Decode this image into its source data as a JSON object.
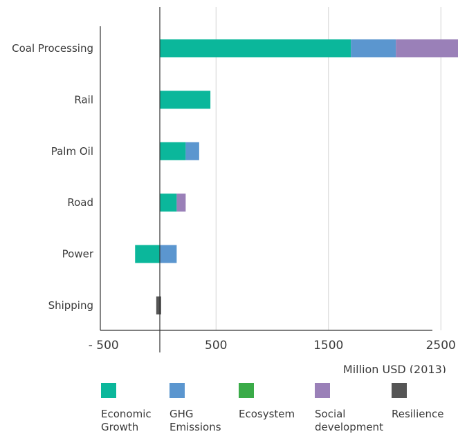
{
  "chart_data": {
    "type": "bar",
    "orientation": "horizontal",
    "stacked": true,
    "categories": [
      "Coal Processing",
      "Rail",
      "Palm Oil",
      "Road",
      "Power",
      "Shipping"
    ],
    "series": [
      {
        "name": "Economic\nGrowth",
        "color": "#0bb79b",
        "values": [
          1700,
          450,
          230,
          150,
          -220,
          0
        ]
      },
      {
        "name": "GHG\nEmissions",
        "color": "#5b96cf",
        "values": [
          400,
          0,
          120,
          0,
          150,
          0
        ]
      },
      {
        "name": "Ecosystem",
        "color": "#3aab48",
        "values": [
          0,
          0,
          0,
          0,
          0,
          0
        ]
      },
      {
        "name": "Social\ndevelopment",
        "color": "#9a80b8",
        "values": [
          700,
          0,
          0,
          80,
          0,
          0
        ]
      },
      {
        "name": "Resilience",
        "color": "#555555",
        "values": [
          0,
          0,
          0,
          0,
          0,
          -20
        ]
      }
    ],
    "x_ticks": [
      -500,
      500,
      1500,
      2500
    ],
    "x_tick_labels": [
      "- 500",
      "500",
      "1500",
      "2500"
    ],
    "xlim": [
      -700,
      2600
    ],
    "xlabel": "Million USD (2013)",
    "grid": "vertical lines at ticks",
    "legend": "bottom"
  }
}
